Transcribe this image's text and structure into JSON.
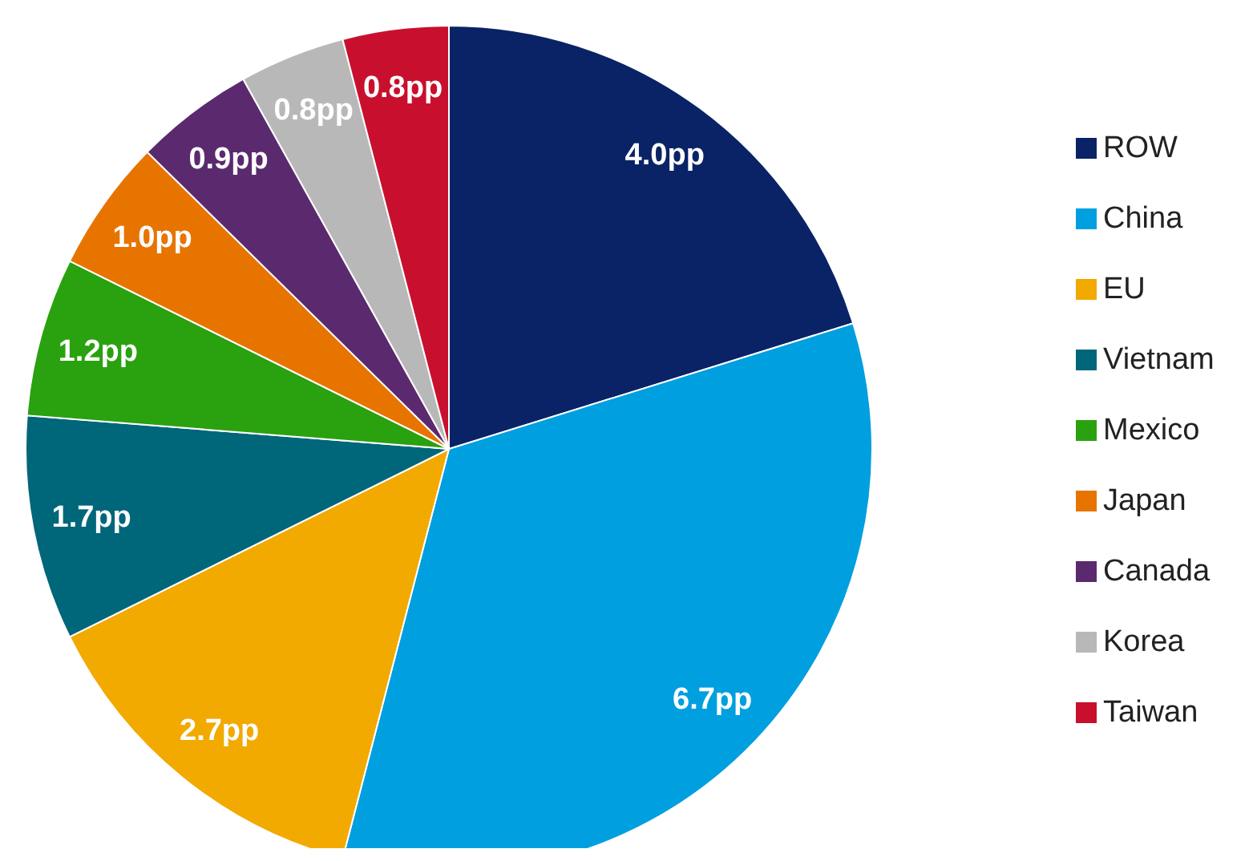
{
  "chart_data": {
    "type": "pie",
    "categories": [
      "ROW",
      "China",
      "EU",
      "Vietnam",
      "Mexico",
      "Japan",
      "Canada",
      "Korea",
      "Taiwan"
    ],
    "values": [
      4.0,
      6.7,
      2.7,
      1.7,
      1.2,
      1.0,
      0.9,
      0.8,
      0.8
    ],
    "colors": [
      "#0a2366",
      "#009fdf",
      "#f2a900",
      "#00667a",
      "#2aa10f",
      "#e87400",
      "#5b2a6e",
      "#b8b8b8",
      "#c8102e"
    ],
    "value_labels": [
      "4.0pp",
      "6.7pp",
      "2.7pp",
      "1.7pp",
      "1.2pp",
      "1.0pp",
      "0.9pp",
      "0.8pp",
      "0.8pp"
    ],
    "legend": "right"
  }
}
